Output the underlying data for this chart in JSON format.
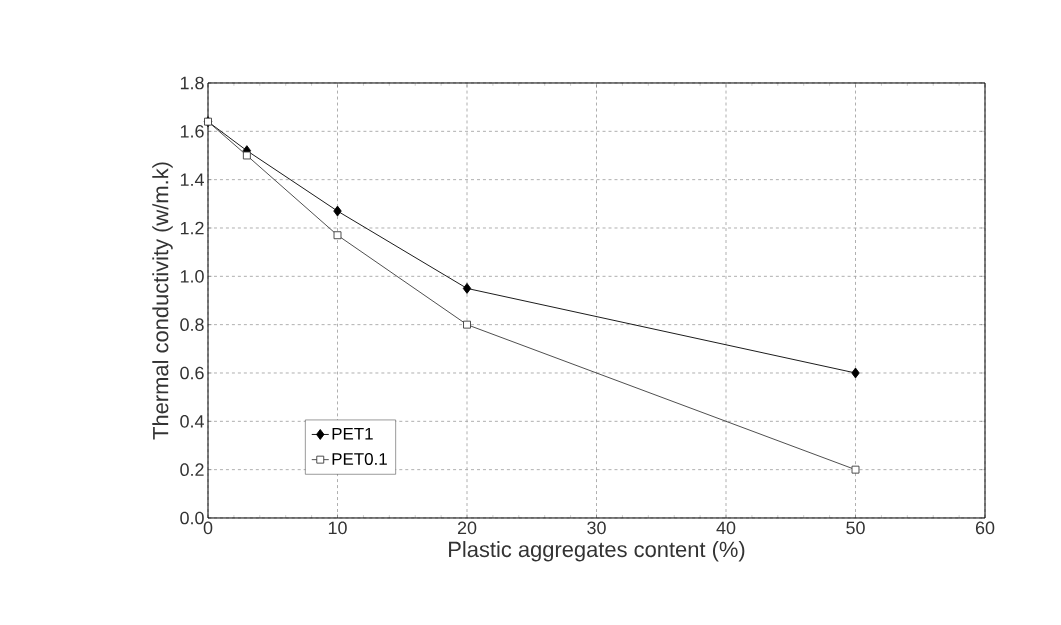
{
  "chart_data": {
    "type": "line",
    "xlabel": "Plastic aggregates content  (%)",
    "ylabel": "Thermal conductivity (w/m.k)",
    "x": [
      0,
      3,
      10,
      20,
      50
    ],
    "series": [
      {
        "name": "PET1",
        "color": "#000000",
        "marker": "diamond",
        "values": [
          1.64,
          1.52,
          1.27,
          0.95,
          0.6
        ]
      },
      {
        "name": "PET0.1",
        "color": "#3a3a3a",
        "marker": "square",
        "values": [
          1.64,
          1.5,
          1.17,
          0.8,
          0.2
        ]
      }
    ],
    "xlim": [
      0,
      60
    ],
    "xticks": [
      0,
      10,
      20,
      30,
      40,
      50,
      60
    ],
    "ylim": [
      0,
      1.8
    ],
    "yticks": [
      {
        "value": 0,
        "label": "0.0"
      },
      {
        "value": 0.2,
        "label": "0.2"
      },
      {
        "value": 0.4,
        "label": "0.4"
      },
      {
        "value": 0.6,
        "label": "0.6"
      },
      {
        "value": 0.8,
        "label": "0.8"
      },
      {
        "value": 1.0,
        "label": "1.0"
      },
      {
        "value": 1.2,
        "label": "1.2"
      },
      {
        "value": 1.4,
        "label": "1.4"
      },
      {
        "value": 1.6,
        "label": "1.6"
      },
      {
        "value": 1.8,
        "label": "1.8"
      }
    ],
    "grid": true,
    "legend": "bottom left",
    "line_style": "solid"
  }
}
